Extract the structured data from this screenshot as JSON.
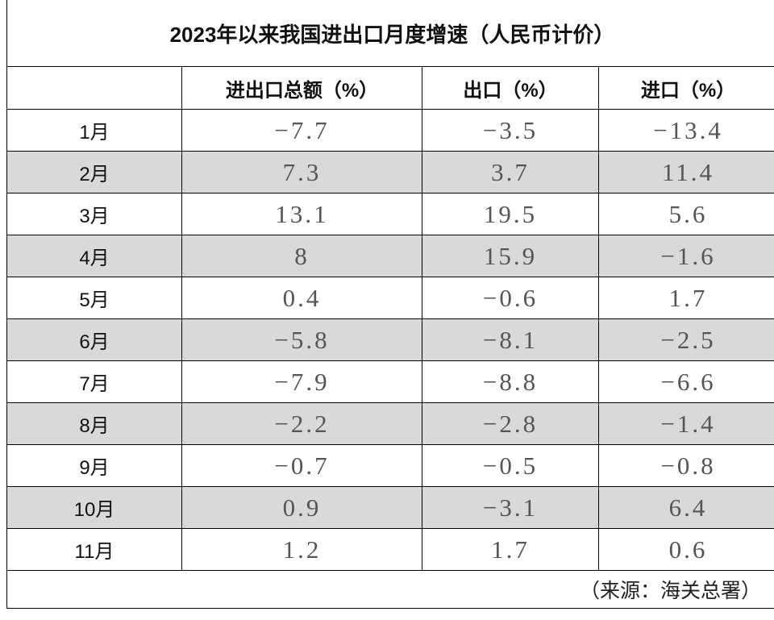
{
  "title": "2023年以来我国进出口月度增速（人民币计价）",
  "table": {
    "header": [
      "进出口总额（%）",
      "出口（%）",
      "进口（%）"
    ],
    "rows": [
      [
        "1月",
        "−7.7",
        "−3.5",
        "−13.4"
      ],
      [
        "2月",
        "7.3",
        "3.7",
        "11.4"
      ],
      [
        "3月",
        "13.1",
        "19.5",
        "5.6"
      ],
      [
        "4月",
        "8",
        "15.9",
        "−1.6"
      ],
      [
        "5月",
        "0.4",
        "−0.6",
        "1.7"
      ],
      [
        "6月",
        "−5.8",
        "−8.1",
        "−2.5"
      ],
      [
        "7月",
        "−7.9",
        "−8.8",
        "−6.6"
      ],
      [
        "8月",
        "−2.2",
        "−2.8",
        "−1.4"
      ],
      [
        "9月",
        "−0.7",
        "−0.5",
        "−0.8"
      ],
      [
        "10月",
        "0.9",
        "−3.1",
        "6.4"
      ],
      [
        "11月",
        "1.2",
        "1.7",
        "0.6"
      ]
    ]
  },
  "source": "（来源：海关总署）"
}
